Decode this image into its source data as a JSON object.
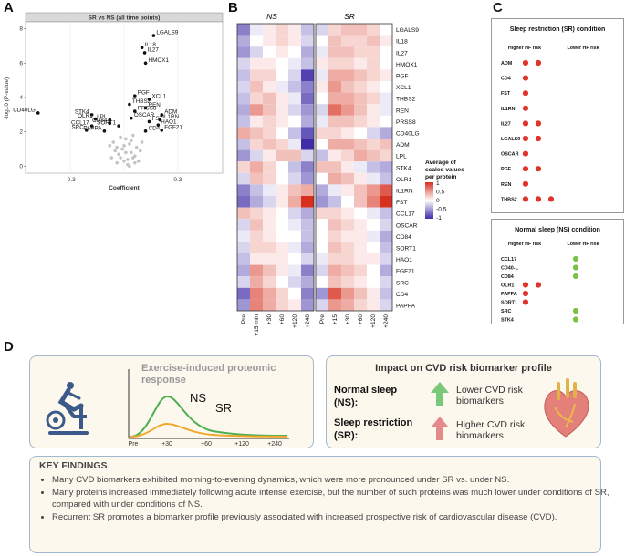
{
  "panels": {
    "a": "A",
    "b": "B",
    "c": "C",
    "d": "D"
  },
  "panel_a": {
    "title": "SR vs NS (all time points)",
    "xlabel": "Coefficient",
    "ylabel": "-log10 (P-value)",
    "chart_data": {
      "type": "scatter",
      "title": "SR vs NS (all time points)",
      "xlabel": "Coefficient",
      "ylabel": "-log10 (P-value)",
      "xlim": [
        -0.55,
        0.55
      ],
      "ylim": [
        -0.4,
        8.4
      ],
      "xticks": [
        "-0.3",
        "0.3"
      ],
      "xtick_values": [
        -0.3,
        0.3
      ],
      "yticks": [
        "0",
        "2",
        "4",
        "6",
        "8"
      ],
      "ytick_values": [
        0,
        2,
        4,
        6,
        8
      ],
      "points": [
        {
          "label": "LGALS9",
          "x": 0.165,
          "y": 7.6
        },
        {
          "label": "IL18",
          "x": 0.1,
          "y": 6.9
        },
        {
          "label": "IL27",
          "x": 0.115,
          "y": 6.6
        },
        {
          "label": "HMOX1",
          "x": 0.12,
          "y": 6.0
        },
        {
          "label": "PGF",
          "x": 0.06,
          "y": 4.1
        },
        {
          "label": "XCL1",
          "x": 0.14,
          "y": 3.9
        },
        {
          "label": "THBS2",
          "x": 0.03,
          "y": 3.6
        },
        {
          "label": "REN",
          "x": 0.12,
          "y": 3.4
        },
        {
          "label": "PRSS8",
          "x": 0.06,
          "y": 3.2
        },
        {
          "label": "ADM",
          "x": 0.21,
          "y": 3.0
        },
        {
          "label": "OSCAR",
          "x": 0.04,
          "y": 2.8
        },
        {
          "label": "IL1RN",
          "x": 0.2,
          "y": 2.7
        },
        {
          "label": "FST",
          "x": 0.14,
          "y": 2.6
        },
        {
          "label": "HAO1",
          "x": 0.19,
          "y": 2.4
        },
        {
          "label": "FGF21",
          "x": 0.21,
          "y": 2.1
        },
        {
          "label": "CD4",
          "x": 0.12,
          "y": 2.05
        },
        {
          "label": "CD40LG",
          "x": -0.48,
          "y": 3.1
        },
        {
          "label": "STK4",
          "x": -0.18,
          "y": 3.0
        },
        {
          "label": "OLR1",
          "x": -0.16,
          "y": 2.75
        },
        {
          "label": "LPL",
          "x": -0.08,
          "y": 2.7
        },
        {
          "label": "CD84",
          "x": -0.08,
          "y": 2.5
        },
        {
          "label": "CCL17",
          "x": -0.18,
          "y": 2.35
        },
        {
          "label": "SORT1",
          "x": -0.03,
          "y": 2.35
        },
        {
          "label": "SRC",
          "x": -0.21,
          "y": 2.1
        },
        {
          "label": "PAPPA",
          "x": -0.11,
          "y": 2.05
        }
      ],
      "nonsig_points": [
        [
          0.0,
          0.3
        ],
        [
          0.02,
          0.1
        ],
        [
          -0.02,
          0.5
        ],
        [
          0.04,
          0.8
        ],
        [
          -0.04,
          0.2
        ],
        [
          0.06,
          0.6
        ],
        [
          -0.01,
          1.0
        ],
        [
          0.03,
          1.3
        ],
        [
          -0.05,
          0.9
        ],
        [
          0.01,
          1.6
        ],
        [
          0.07,
          1.1
        ],
        [
          -0.06,
          1.4
        ],
        [
          0.05,
          1.8
        ],
        [
          0.02,
          0.4
        ],
        [
          -0.03,
          0.7
        ],
        [
          0.08,
          0.3
        ],
        [
          0.0,
          1.2
        ],
        [
          -0.02,
          1.7
        ],
        [
          0.04,
          1.5
        ],
        [
          0.09,
          0.9
        ],
        [
          -0.07,
          0.5
        ],
        [
          0.03,
          0.0
        ],
        [
          0.06,
          0.2
        ],
        [
          -0.04,
          1.1
        ],
        [
          0.01,
          0.8
        ],
        [
          0.1,
          1.4
        ],
        [
          -0.08,
          1.2
        ],
        [
          0.05,
          0.5
        ]
      ]
    }
  },
  "panel_b": {
    "group_ns": "NS",
    "group_sr": "SR",
    "legend_title_1": "Average of",
    "legend_title_2": "scaled values",
    "legend_title_3": "per protein",
    "legend_ticks": [
      "1",
      "0.5",
      "0",
      "-0.5",
      "-1"
    ],
    "chart_data": {
      "type": "heatmap",
      "rows": [
        "LGALS9",
        "IL18",
        "IL27",
        "HMOX1",
        "PGF",
        "XCL1",
        "THBS2",
        "REN",
        "PRSS8",
        "CD40LG",
        "ADM",
        "LPL",
        "STK4",
        "OLR1",
        "IL1RN",
        "FST",
        "CCL17",
        "OSCAR",
        "CD84",
        "SORT1",
        "HAO1",
        "FGF21",
        "SRC",
        "CD4",
        "PAPPA"
      ],
      "columns_ns": [
        "Pre",
        "+15 min",
        "+30",
        "+60",
        "+120",
        "+240"
      ],
      "columns_sr": [
        "Pre",
        "+15",
        "+30",
        "+60",
        "+120",
        "+240"
      ],
      "color_range": [
        -1,
        1
      ],
      "values": [
        [
          -0.6,
          -0.1,
          0.1,
          0.2,
          0.1,
          -0.3,
          -0.2,
          0.2,
          0.3,
          0.3,
          0.2,
          0.0
        ],
        [
          -0.4,
          0.0,
          0.1,
          0.2,
          0.1,
          -0.2,
          0.0,
          0.3,
          0.2,
          0.2,
          0.3,
          0.1
        ],
        [
          -0.5,
          -0.2,
          0.0,
          0.1,
          0.0,
          -0.4,
          -0.1,
          0.3,
          0.3,
          0.2,
          0.2,
          0.0
        ],
        [
          -0.2,
          0.1,
          0.1,
          0.0,
          -0.1,
          -0.3,
          0.1,
          0.2,
          0.2,
          0.1,
          0.2,
          0.0
        ],
        [
          -0.3,
          0.2,
          0.2,
          0.0,
          -0.2,
          -0.9,
          -0.1,
          0.4,
          0.4,
          0.3,
          0.2,
          0.1
        ],
        [
          -0.2,
          0.3,
          0.1,
          -0.1,
          -0.3,
          -0.6,
          0.1,
          0.5,
          0.3,
          0.2,
          0.1,
          0.0
        ],
        [
          -0.3,
          0.2,
          0.3,
          0.1,
          -0.1,
          -0.7,
          0.0,
          0.4,
          0.4,
          0.3,
          0.2,
          -0.1
        ],
        [
          -0.4,
          0.5,
          0.3,
          0.1,
          -0.2,
          -0.5,
          -0.2,
          0.7,
          0.5,
          0.3,
          0.1,
          -0.1
        ],
        [
          -0.3,
          0.1,
          0.2,
          0.1,
          0.0,
          -0.4,
          -0.1,
          0.3,
          0.3,
          0.2,
          0.1,
          0.0
        ],
        [
          0.4,
          0.3,
          0.2,
          0.0,
          -0.3,
          -0.8,
          0.2,
          0.2,
          0.1,
          0.0,
          -0.2,
          -0.4
        ],
        [
          -0.3,
          0.2,
          0.3,
          0.2,
          -0.1,
          -1.0,
          0.0,
          0.4,
          0.4,
          0.3,
          0.2,
          0.3
        ],
        [
          -0.5,
          -0.2,
          0.1,
          0.3,
          0.3,
          -0.2,
          -0.3,
          0.1,
          0.2,
          0.4,
          0.3,
          0.2
        ],
        [
          0.2,
          0.4,
          0.2,
          0.0,
          -0.3,
          -0.6,
          0.3,
          0.3,
          0.1,
          -0.1,
          -0.3,
          -0.4
        ],
        [
          -0.2,
          0.3,
          0.2,
          0.0,
          -0.2,
          -0.5,
          0.0,
          0.4,
          0.3,
          0.1,
          -0.1,
          -0.3
        ],
        [
          -0.6,
          -0.3,
          -0.1,
          0.1,
          0.3,
          0.4,
          -0.4,
          -0.1,
          0.1,
          0.3,
          0.5,
          0.8
        ],
        [
          -0.7,
          -0.4,
          -0.2,
          0.1,
          0.4,
          1.0,
          -0.5,
          -0.3,
          0.0,
          0.3,
          0.6,
          1.0
        ],
        [
          0.3,
          0.2,
          0.1,
          0.0,
          -0.2,
          -0.4,
          0.2,
          0.2,
          0.1,
          0.0,
          -0.1,
          -0.3
        ],
        [
          -0.2,
          0.3,
          0.1,
          0.0,
          -0.1,
          -0.3,
          0.0,
          0.3,
          0.2,
          0.1,
          0.0,
          -0.2
        ],
        [
          -0.1,
          0.2,
          0.1,
          0.0,
          0.0,
          -0.3,
          0.0,
          0.2,
          0.1,
          0.1,
          -0.1,
          -0.4
        ],
        [
          -0.2,
          0.2,
          0.2,
          0.1,
          -0.1,
          -0.4,
          0.0,
          0.3,
          0.2,
          0.1,
          0.0,
          -0.3
        ],
        [
          -0.3,
          0.1,
          0.1,
          0.1,
          0.0,
          -0.2,
          -0.1,
          0.2,
          0.2,
          0.1,
          0.1,
          -0.2
        ],
        [
          -0.4,
          0.5,
          0.3,
          0.1,
          -0.1,
          -0.6,
          -0.2,
          0.4,
          0.3,
          0.2,
          0.0,
          -0.4
        ],
        [
          -0.2,
          0.4,
          0.2,
          0.0,
          -0.2,
          -0.4,
          0.0,
          0.3,
          0.2,
          0.1,
          0.0,
          -0.2
        ],
        [
          -0.7,
          0.6,
          0.4,
          0.2,
          0.0,
          -0.6,
          -0.5,
          0.8,
          0.5,
          0.3,
          0.1,
          -0.3
        ],
        [
          -0.5,
          0.6,
          0.4,
          0.2,
          0.1,
          -0.5,
          -0.2,
          0.5,
          0.4,
          0.2,
          0.1,
          -0.2
        ]
      ]
    }
  },
  "panel_c": {
    "sr_title": "Sleep restriction (SR) condition",
    "ns_title": "Normal sleep (NS) condition",
    "higher": "Higher HF risk",
    "lower": "Lower HF risk",
    "sr_rows": [
      {
        "name": "ADM",
        "higher": 2,
        "lower": 0
      },
      {
        "name": "CD4",
        "higher": 1,
        "lower": 0
      },
      {
        "name": "FST",
        "higher": 1,
        "lower": 0
      },
      {
        "name": "IL1RN",
        "higher": 1,
        "lower": 0
      },
      {
        "name": "IL27",
        "higher": 2,
        "lower": 0
      },
      {
        "name": "LGALS9",
        "higher": 2,
        "lower": 0
      },
      {
        "name": "OSCAR",
        "higher": 1,
        "lower": 0
      },
      {
        "name": "PGF",
        "higher": 2,
        "lower": 0
      },
      {
        "name": "REN",
        "higher": 1,
        "lower": 0
      },
      {
        "name": "THBS2",
        "higher": 3,
        "lower": 0
      }
    ],
    "ns_rows": [
      {
        "name": "CCL17",
        "higher": 0,
        "lower": 1
      },
      {
        "name": "CD40-L",
        "higher": 0,
        "lower": 1
      },
      {
        "name": "CD84",
        "higher": 0,
        "lower": 1
      },
      {
        "name": "OLR1",
        "higher": 2,
        "lower": 0
      },
      {
        "name": "PAPPA",
        "higher": 1,
        "lower": 0
      },
      {
        "name": "SORT1",
        "higher": 1,
        "lower": 0
      },
      {
        "name": "SRC",
        "higher": 0,
        "lower": 1
      },
      {
        "name": "STK4",
        "higher": 0,
        "lower": 1
      }
    ],
    "colors": {
      "higher": "#e0342a",
      "lower": "#7cc242"
    }
  },
  "panel_d": {
    "exercise_title_1": "Exercise-induced proteomic",
    "exercise_title_2": "response",
    "curve_ns": "NS",
    "curve_sr": "SR",
    "chart_data": {
      "type": "line",
      "title": "Exercise-induced proteomic response",
      "x_ticks": [
        "Pre",
        "+30",
        "+60",
        "+120",
        "+240"
      ],
      "series": [
        {
          "name": "NS",
          "color": "#4caf50",
          "peak": 1.0
        },
        {
          "name": "SR",
          "color": "#f0a830",
          "peak": 0.3
        }
      ]
    },
    "impact_title": "Impact on CVD risk biomarker profile",
    "ns_label_1": "Normal sleep",
    "ns_label_2": "(NS):",
    "ns_result_1": "Lower CVD risk",
    "ns_result_2": "biomarkers",
    "sr_label_1": "Sleep restriction",
    "sr_label_2": "(SR):",
    "sr_result_1": "Higher CVD risk",
    "sr_result_2": "biomarkers",
    "key_findings_title": "KEY FINDINGS",
    "findings": [
      "Many CVD biomarkers exhibited morning-to-evening dynamics, which were more pronounced under SR vs. under NS.",
      "Many proteins increased immediately following acute intense exercise, but the number of such proteins was much lower under conditions of SR, compared with under conditions of NS.",
      "Recurrent SR promotes a biomarker profile previously associated with increased prospective risk of cardiovascular disease (CVD)."
    ],
    "colors": {
      "up_arrow": "#7cc87a",
      "down_arrow": "#e58a8a",
      "heading": "#333333"
    }
  }
}
